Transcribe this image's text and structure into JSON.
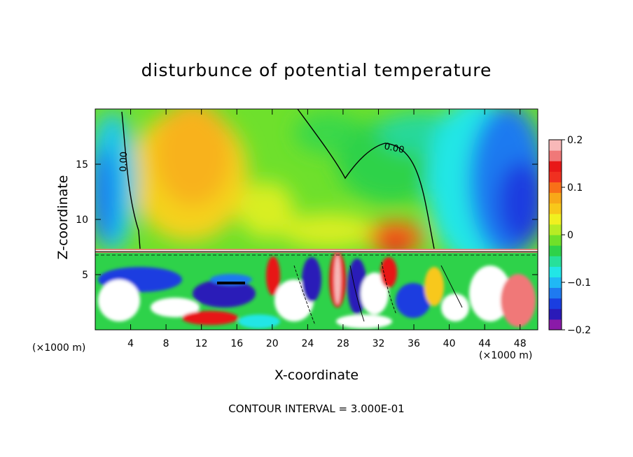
{
  "chart_data": {
    "type": "heatmap",
    "title": "disturbunce of potential temperature",
    "xlabel": "X-coordinate",
    "ylabel": "Z-coordinate",
    "x_unit": "(×1000 m)",
    "x_range": [
      0,
      50
    ],
    "y_range": [
      0,
      20
    ],
    "x_ticks": [
      4,
      8,
      12,
      16,
      20,
      24,
      28,
      32,
      36,
      40,
      44,
      48
    ],
    "y_ticks": [
      5,
      10,
      15
    ],
    "colorbar": {
      "range": [
        -0.2,
        0.2
      ],
      "ticks": [
        0.2,
        0.1,
        0,
        -0.1,
        -0.2
      ],
      "tick_labels": [
        "0.2",
        "0.1",
        "0",
        "−0.1",
        "−0.2"
      ],
      "colors": [
        "#8a1aa8",
        "#2a1ab8",
        "#1a3ee0",
        "#1f7af0",
        "#20b8f5",
        "#22e6e6",
        "#27e09a",
        "#2ed24a",
        "#70e02a",
        "#b8ec24",
        "#f0f020",
        "#f8c81a",
        "#f8a818",
        "#f87018",
        "#f03020",
        "#e81818",
        "#f07878",
        "#f8b8b8"
      ]
    },
    "contour_labels": [
      "0.00",
      "0.00"
    ],
    "contour_interval_note": "CONTOUR INTERVAL = 3.000E-01",
    "grid": false
  }
}
